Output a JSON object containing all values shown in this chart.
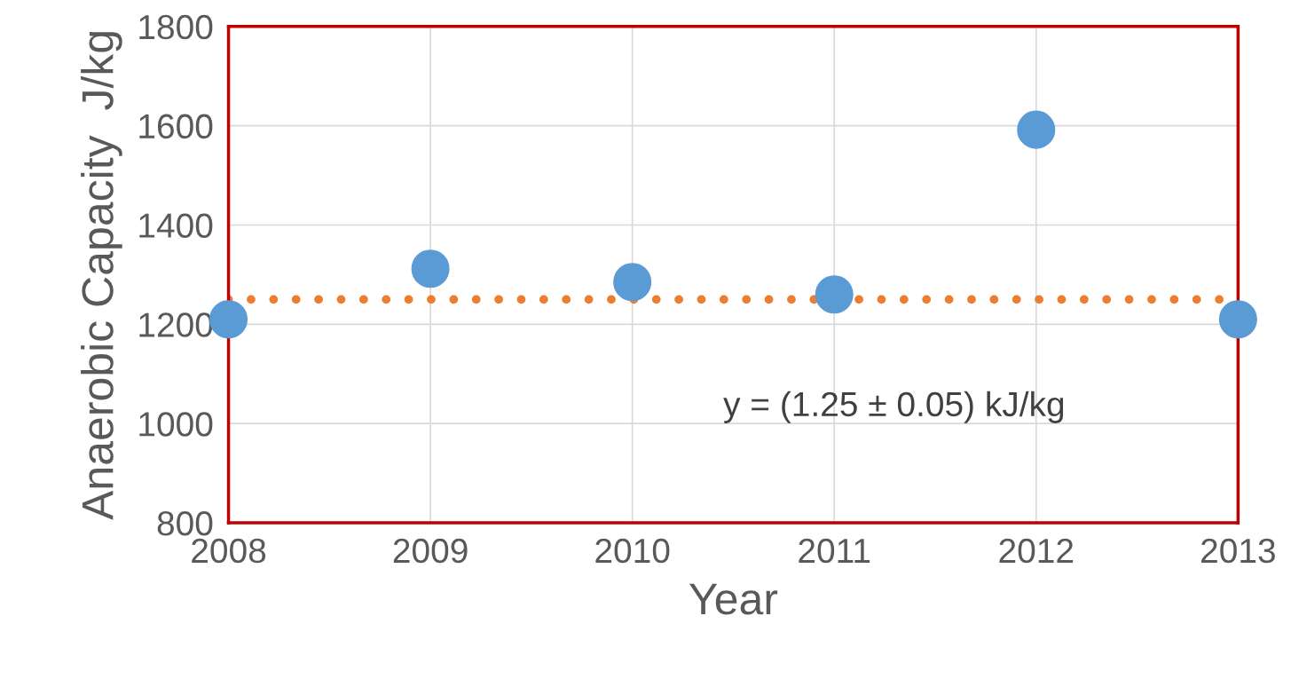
{
  "chart_data": {
    "type": "scatter",
    "xlabel": "Year",
    "ylabel": "Anaerobic Capacity  J/kg",
    "x": [
      2008,
      2009,
      2010,
      2011,
      2012,
      2013
    ],
    "series": [
      {
        "color": "#5b9bd5",
        "values": [
          1210,
          1312,
          1285,
          1260,
          1592,
          1210
        ]
      }
    ],
    "xlim": [
      2008,
      2013
    ],
    "xticks": [
      2008,
      2009,
      2010,
      2011,
      2012,
      2013
    ],
    "ylim": [
      800,
      1800
    ],
    "yticks": [
      800,
      1000,
      1200,
      1400,
      1600,
      1800
    ],
    "ref_lines": [
      {
        "axis": "y",
        "value": 1250,
        "color": "#ed7d31",
        "line_style": "dotted"
      }
    ],
    "annotations": [
      "y = (1.25 ± 0.05) kJ/kg"
    ],
    "grid": true,
    "marker": "circle",
    "legend": false
  }
}
